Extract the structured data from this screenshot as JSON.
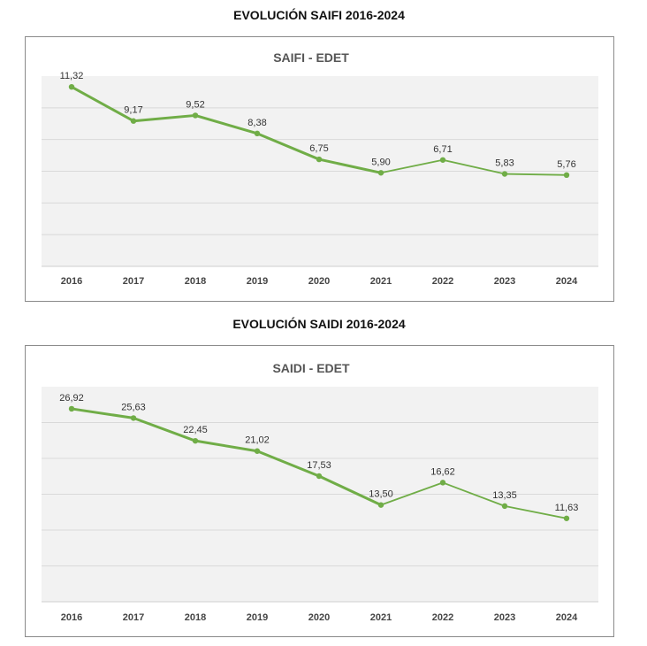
{
  "headings": {
    "saifi": "EVOLUCIÓN SAIFI 2016-2024",
    "saidi": "EVOLUCIÓN SAIDI 2016-2024"
  },
  "colors": {
    "line": "#70ad47",
    "plot_bg": "#f2f2f2",
    "grid": "#d9d9d9"
  },
  "chart_data": [
    {
      "type": "line",
      "title": "SAIFI - EDET",
      "categories": [
        "2016",
        "2017",
        "2018",
        "2019",
        "2020",
        "2021",
        "2022",
        "2023",
        "2024"
      ],
      "values": [
        11.32,
        9.17,
        9.52,
        8.38,
        6.75,
        5.9,
        6.71,
        5.83,
        5.76
      ],
      "labels": [
        "11,32",
        "9,17",
        "9,52",
        "8,38",
        "6,75",
        "5,90",
        "6,71",
        "5,83",
        "5,76"
      ],
      "ylim": [
        0,
        12
      ],
      "gridlines": [
        2,
        4,
        6,
        8,
        10
      ],
      "grid": true
    },
    {
      "type": "line",
      "title": "SAIDI - EDET",
      "categories": [
        "2016",
        "2017",
        "2018",
        "2019",
        "2020",
        "2021",
        "2022",
        "2023",
        "2024"
      ],
      "values": [
        26.92,
        25.63,
        22.45,
        21.02,
        17.53,
        13.5,
        16.62,
        13.35,
        11.63
      ],
      "labels": [
        "26,92",
        "25,63",
        "22,45",
        "21,02",
        "17,53",
        "13,50",
        "16,62",
        "13,35",
        "11,63"
      ],
      "ylim": [
        0,
        30
      ],
      "gridlines": [
        5,
        10,
        15,
        20,
        25
      ],
      "grid": true
    }
  ]
}
